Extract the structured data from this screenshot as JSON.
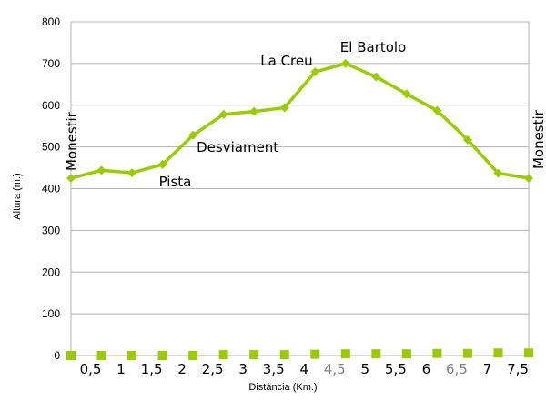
{
  "chart_data": {
    "type": "line",
    "xlabel": "Distància (Km.)",
    "ylabel": "Altura (m.)",
    "ylim": [
      0,
      800
    ],
    "yticks": [
      "0",
      "100",
      "200",
      "300",
      "400",
      "500",
      "600",
      "700",
      "800"
    ],
    "grid": true,
    "legend": "none",
    "x": [
      0,
      0.5,
      1,
      1.5,
      2,
      2.5,
      3,
      3.5,
      4,
      4.5,
      5,
      5.5,
      6,
      6.5,
      7,
      7.5
    ],
    "category_labels": [
      {
        "text": "0,5",
        "color": "#000000"
      },
      {
        "text": "1",
        "color": "#000000"
      },
      {
        "text": "1,5",
        "color": "#000000"
      },
      {
        "text": "2",
        "color": "#000000"
      },
      {
        "text": "2,5",
        "color": "#000000"
      },
      {
        "text": "3",
        "color": "#000000"
      },
      {
        "text": "3,5",
        "color": "#000000"
      },
      {
        "text": "4",
        "color": "#000000"
      },
      {
        "text": "4,5",
        "color": "#808080"
      },
      {
        "text": "5",
        "color": "#000000"
      },
      {
        "text": "5,5",
        "color": "#000000"
      },
      {
        "text": "6",
        "color": "#000000"
      },
      {
        "text": "6,5",
        "color": "#808080"
      },
      {
        "text": "7",
        "color": "#000000"
      },
      {
        "text": "7,5",
        "color": "#000000"
      }
    ],
    "series": [
      {
        "values": [
          425,
          444,
          438,
          458,
          528,
          578,
          585,
          594,
          680,
          700,
          668,
          627,
          587,
          517,
          437,
          425
        ],
        "color": "#99cc00",
        "marker": "diamond"
      },
      {
        "values": [
          0,
          0,
          0,
          0,
          0,
          2,
          2,
          2,
          3,
          4,
          4,
          4,
          5,
          5,
          6,
          6
        ],
        "color": "#99cc00",
        "marker": "square",
        "line": false
      }
    ],
    "annotations": [
      {
        "text": "Monestir",
        "x": 0,
        "y": 425,
        "rotated": true
      },
      {
        "text": "Pista",
        "x": 1.5,
        "y": 458,
        "rotated": false
      },
      {
        "text": "Desviament",
        "x": 2,
        "y": 528,
        "rotated": false
      },
      {
        "text": "La Creu",
        "x": 4,
        "y": 680,
        "rotated": false
      },
      {
        "text": "El Bartolo",
        "x": 4.5,
        "y": 700,
        "rotated": false
      },
      {
        "text": "Monestir",
        "x": 7.5,
        "y": 425,
        "rotated": true
      }
    ]
  }
}
